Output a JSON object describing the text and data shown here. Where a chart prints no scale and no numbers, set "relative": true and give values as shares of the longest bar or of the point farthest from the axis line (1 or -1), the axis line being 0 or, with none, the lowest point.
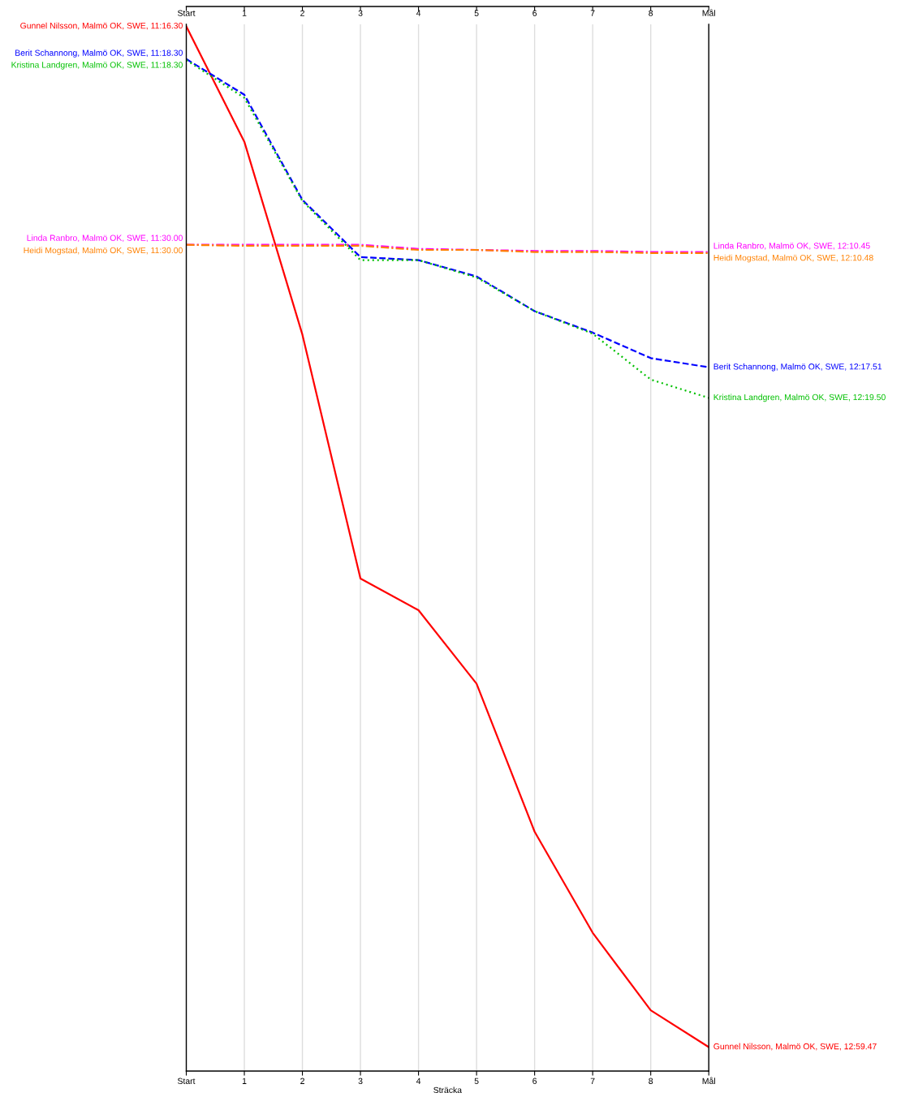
{
  "chart_data": {
    "type": "line",
    "relative": true,
    "xlabel": "Sträcka",
    "grid": "x",
    "categories": [
      "Start",
      "1",
      "2",
      "3",
      "4",
      "5",
      "6",
      "7",
      "8",
      "Mål"
    ],
    "series": [
      {
        "color": "#ff0000",
        "line_style": "solid",
        "values": [
          1.0,
          0.887,
          0.698,
          0.459,
          0.428,
          0.356,
          0.211,
          0.112,
          0.036,
          0
        ]
      },
      {
        "color": "#0000ff",
        "line_style": "dashed",
        "values": [
          0.968,
          0.933,
          0.83,
          0.774,
          0.771,
          0.755,
          0.721,
          0.7,
          0.675,
          0.666
        ]
      },
      {
        "color": "#00c000",
        "line_style": "dotted",
        "values": [
          0.967,
          0.93,
          0.829,
          0.771,
          0.771,
          0.754,
          0.721,
          0.699,
          0.654,
          0.636
        ]
      },
      {
        "color": "#ff00ff",
        "line_style": "dashdot",
        "values": [
          0.786,
          0.786,
          0.786,
          0.786,
          0.782,
          0.781,
          0.78,
          0.78,
          0.779,
          0.779
        ]
      },
      {
        "color": "#ff8000",
        "line_style": "dashdot",
        "values": [
          0.786,
          0.785,
          0.785,
          0.785,
          0.781,
          0.781,
          0.779,
          0.779,
          0.778,
          0.778
        ]
      }
    ],
    "annotations": [
      {
        "text": "Gunnel Nilsson, Malmö OK, SWE, 11:16.30",
        "x": "Start",
        "y": 1.0
      },
      {
        "text": "Berit Schannong, Malmö OK, SWE, 11:18.30",
        "x": "Start",
        "y": 0.968
      },
      {
        "text": "Kristina Landgren, Malmö OK, SWE, 11:18.30",
        "x": "Start",
        "y": 0.967
      },
      {
        "text": "Linda Ranbro, Malmö OK, SWE, 11:30.00",
        "x": "Start",
        "y": 0.786
      },
      {
        "text": "Heidi Mogstad, Malmö OK, SWE, 11:30.00",
        "x": "Start",
        "y": 0.786
      },
      {
        "text": "Linda Ranbro, Malmö OK, SWE, 12:10.45",
        "x": "Mål",
        "y": 0.779
      },
      {
        "text": "Heidi Mogstad, Malmö OK, SWE, 12:10.48",
        "x": "Mål",
        "y": 0.778
      },
      {
        "text": "Berit Schannong, Malmö OK, SWE, 12:17.51",
        "x": "Mål",
        "y": 0.666
      },
      {
        "text": "Kristina Landgren, Malmö OK, SWE, 12:19.50",
        "x": "Mål",
        "y": 0.636
      },
      {
        "text": "Gunnel Nilsson, Malmö OK, SWE, 12:59.47",
        "x": "Mål",
        "y": 0
      }
    ]
  }
}
